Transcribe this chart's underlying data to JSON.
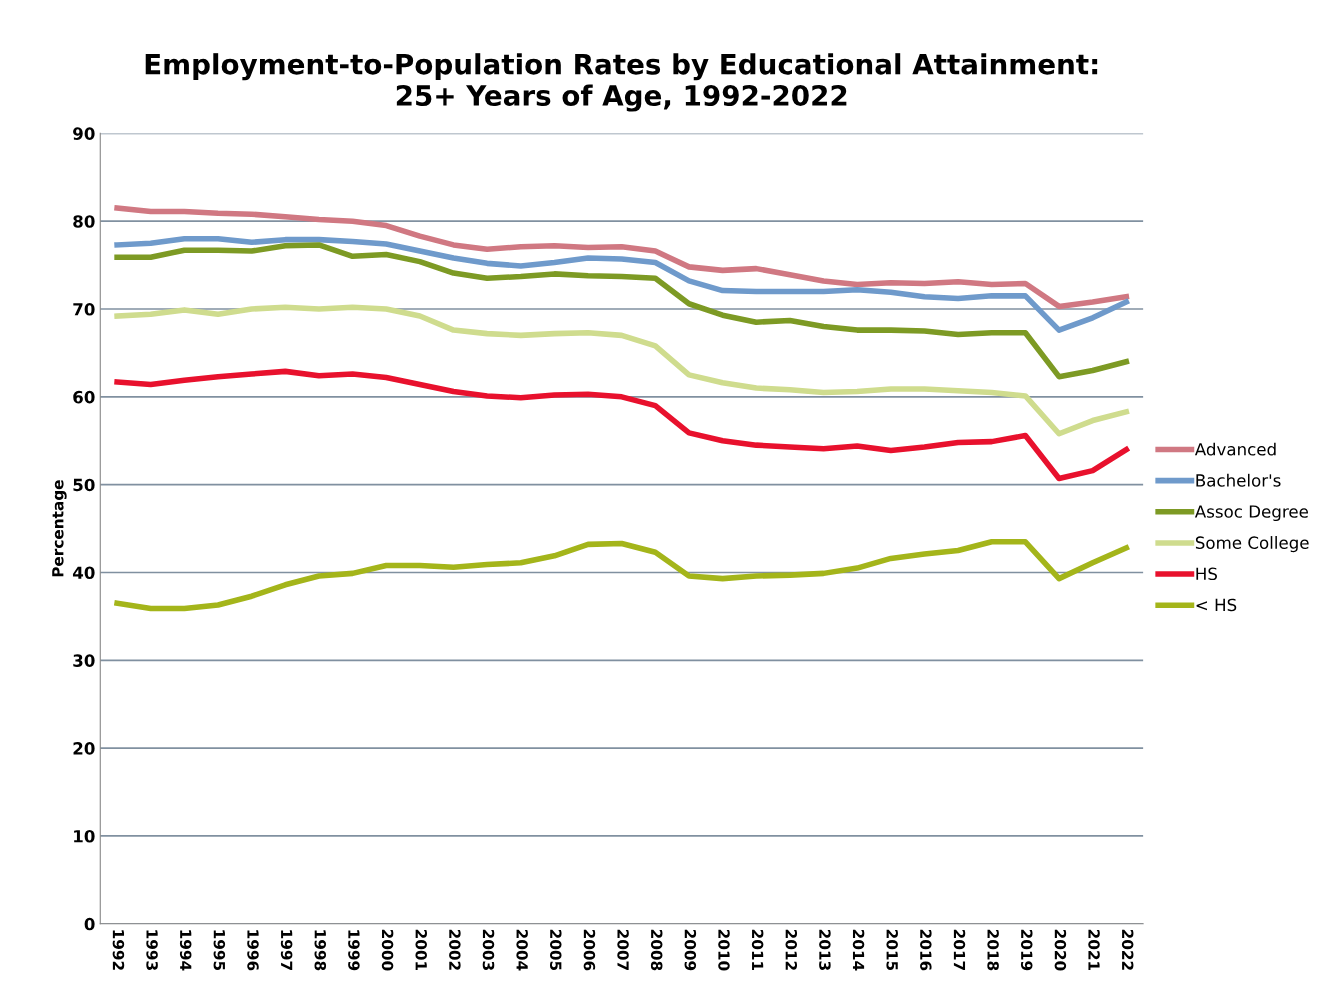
{
  "chart_data": {
    "type": "line",
    "title": "Employment-to-Population Rates by Educational Attainment:\n25+ Years of Age, 1992-2022",
    "ylabel": "Percentage",
    "categories": [
      "1992",
      "1993",
      "1994",
      "1995",
      "1996",
      "1997",
      "1998",
      "1999",
      "2000",
      "2001",
      "2002",
      "2003",
      "2004",
      "2005",
      "2006",
      "2007",
      "2008",
      "2009",
      "2010",
      "2011",
      "2012",
      "2013",
      "2014",
      "2015",
      "2016",
      "2017",
      "2018",
      "2019",
      "2020",
      "2021",
      "2022"
    ],
    "series": [
      {
        "name": "Advanced",
        "color": "#d07882",
        "values": [
          81.5,
          81.1,
          81.1,
          80.9,
          80.8,
          80.5,
          80.2,
          80.0,
          79.5,
          78.3,
          77.3,
          76.8,
          77.1,
          77.2,
          77.0,
          77.1,
          76.6,
          74.8,
          74.4,
          74.6,
          73.9,
          73.2,
          72.8,
          73.0,
          72.9,
          73.1,
          72.8,
          72.9,
          70.3,
          70.8,
          71.4
        ]
      },
      {
        "name": "Bachelor's",
        "color": "#6f9acb",
        "values": [
          77.3,
          77.5,
          78.0,
          78.0,
          77.6,
          77.9,
          77.9,
          77.7,
          77.4,
          76.6,
          75.8,
          75.2,
          74.9,
          75.3,
          75.8,
          75.7,
          75.3,
          73.2,
          72.1,
          72.0,
          72.0,
          72.0,
          72.2,
          71.9,
          71.4,
          71.2,
          71.5,
          71.5,
          67.6,
          69.0,
          70.8
        ]
      },
      {
        "name": "Assoc Degree",
        "color": "#7d9a24",
        "values": [
          75.9,
          75.9,
          76.7,
          76.7,
          76.6,
          77.2,
          77.3,
          76.0,
          76.2,
          75.4,
          74.1,
          73.5,
          73.7,
          74.0,
          73.8,
          73.7,
          73.5,
          70.6,
          69.3,
          68.5,
          68.7,
          68.0,
          67.6,
          67.6,
          67.5,
          67.1,
          67.3,
          67.3,
          62.3,
          63.0,
          64.0
        ]
      },
      {
        "name": "Some College",
        "color": "#cfdc8e",
        "values": [
          69.2,
          69.4,
          69.9,
          69.4,
          70.0,
          70.2,
          70.0,
          70.2,
          70.0,
          69.2,
          67.6,
          67.2,
          67.0,
          67.2,
          67.3,
          67.0,
          65.8,
          62.5,
          61.6,
          61.0,
          60.8,
          60.5,
          60.6,
          60.9,
          60.9,
          60.7,
          60.5,
          60.1,
          55.8,
          57.3,
          58.3
        ]
      },
      {
        "name": "HS",
        "color": "#e8112d",
        "values": [
          61.7,
          61.4,
          61.9,
          62.3,
          62.6,
          62.9,
          62.4,
          62.6,
          62.2,
          61.4,
          60.6,
          60.1,
          59.9,
          60.2,
          60.3,
          60.0,
          59.0,
          55.9,
          55.0,
          54.5,
          54.3,
          54.1,
          54.4,
          53.9,
          54.3,
          54.8,
          54.9,
          55.6,
          50.7,
          51.6,
          54.0
        ]
      },
      {
        "name": "< HS",
        "color": "#a4b51a",
        "values": [
          36.5,
          35.9,
          35.9,
          36.3,
          37.3,
          38.6,
          39.6,
          39.9,
          40.8,
          40.8,
          40.6,
          40.9,
          41.1,
          41.9,
          43.2,
          43.3,
          42.3,
          39.6,
          39.3,
          39.6,
          39.7,
          39.9,
          40.5,
          41.6,
          42.1,
          42.5,
          43.5,
          43.5,
          39.3,
          41.1,
          42.8
        ]
      }
    ],
    "ylim": [
      0,
      90
    ],
    "yticks": [
      0,
      10,
      20,
      30,
      40,
      50,
      60,
      70,
      80,
      90
    ],
    "grid": "y",
    "legend": "right",
    "line_style": "solid",
    "marker": "none"
  }
}
